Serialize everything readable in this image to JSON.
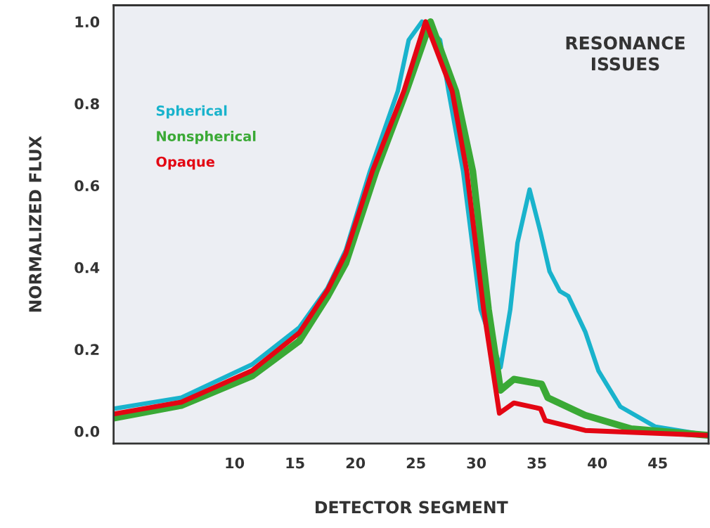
{
  "chart_data": {
    "type": "line",
    "xlabel": "DETECTOR SEGMENT",
    "ylabel": "NORMALIZED FLUX",
    "xlim": [
      0,
      49.2
    ],
    "ylim": [
      -0.03,
      1.04
    ],
    "xticks": [
      10,
      15,
      20,
      25,
      30,
      35,
      40,
      45
    ],
    "yticks": [
      {
        "value": 0,
        "label": "0.0"
      },
      0.2,
      0.4,
      0.6,
      0.8,
      {
        "value": 1,
        "label": "1.0"
      }
    ],
    "grid": false,
    "legend": "top left",
    "marker": "none",
    "line_style": "solid",
    "annotations": [
      "RESONANCE\nISSUES"
    ],
    "series": [
      {
        "name": "Spherical",
        "color": "#19b3cc",
        "x": [
          0,
          5.6,
          11.45,
          15.35,
          17.7,
          19.2,
          21.2,
          23.5,
          24.4,
          25.5,
          27.0,
          27.7,
          28.9,
          30.35,
          32.0,
          32.8,
          33.4,
          34.4,
          35.3,
          36.05,
          36.9,
          37.6,
          39.0,
          40.1,
          41.9,
          44.8,
          49.2
        ],
        "values": [
          0.055,
          0.082,
          0.163,
          0.253,
          0.35,
          0.442,
          0.635,
          0.83,
          0.955,
          1.0,
          0.955,
          0.83,
          0.635,
          0.297,
          0.156,
          0.297,
          0.46,
          0.59,
          0.486,
          0.39,
          0.342,
          0.33,
          0.243,
          0.147,
          0.06,
          0.011,
          -0.01
        ]
      },
      {
        "name": "Nonspherical",
        "color": "#3aa935",
        "x": [
          0,
          5.6,
          11.45,
          15.35,
          17.7,
          19.2,
          21.7,
          24.2,
          26.2,
          28.3,
          29.7,
          31.0,
          32.0,
          33.1,
          35.4,
          35.9,
          39.0,
          42.8,
          49.2
        ],
        "values": [
          0.032,
          0.063,
          0.135,
          0.22,
          0.329,
          0.41,
          0.635,
          0.83,
          1.0,
          0.83,
          0.635,
          0.297,
          0.1,
          0.127,
          0.115,
          0.082,
          0.039,
          0.006,
          -0.01
        ]
      },
      {
        "name": "Opaque",
        "color": "#e30613",
        "x": [
          0,
          5.6,
          11.45,
          15.35,
          17.7,
          19.2,
          21.4,
          24.0,
          25.8,
          28.0,
          29.2,
          30.6,
          31.9,
          33.1,
          35.3,
          35.7,
          39.0,
          49.2
        ],
        "values": [
          0.042,
          0.071,
          0.148,
          0.24,
          0.345,
          0.434,
          0.635,
          0.83,
          1.0,
          0.83,
          0.635,
          0.297,
          0.044,
          0.069,
          0.055,
          0.026,
          0.002,
          -0.01
        ]
      }
    ]
  }
}
